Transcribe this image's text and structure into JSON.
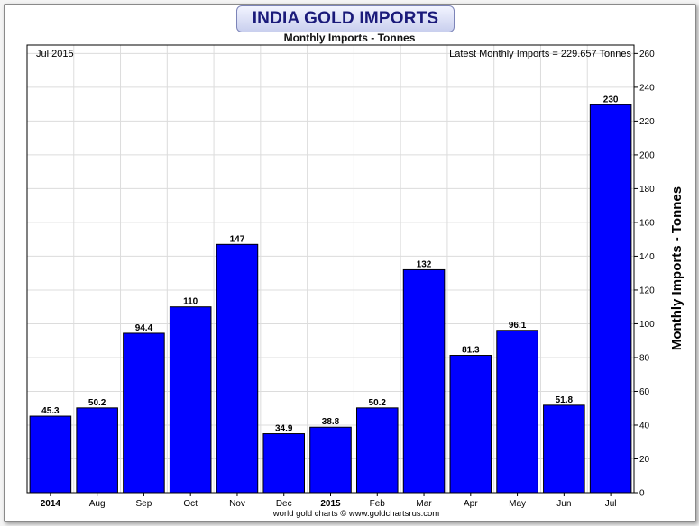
{
  "chart_data": {
    "type": "bar",
    "title": "INDIA GOLD IMPORTS",
    "subtitle": "Monthly Imports - Tonnes",
    "ylabel": "Monthly Imports - Tonnes",
    "xlabel": "",
    "date_label": "Jul 2015",
    "latest_label": "Latest Monthly Imports = 229.657 Tonnes",
    "credit": "world gold charts © www.goldchartsrus.com",
    "categories": [
      "2014",
      "Aug",
      "Sep",
      "Oct",
      "Nov",
      "Dec",
      "2015",
      "Feb",
      "Mar",
      "Apr",
      "May",
      "Jun",
      "Jul"
    ],
    "bold_categories": [
      "2014",
      "2015"
    ],
    "values": [
      45.3,
      50.2,
      94.4,
      110,
      147,
      34.9,
      38.8,
      50.2,
      132,
      81.3,
      96.1,
      51.8,
      229.657
    ],
    "value_labels": [
      "45.3",
      "50.2",
      "94.4",
      "110",
      "147",
      "34.9",
      "38.8",
      "50.2",
      "132",
      "81.3",
      "96.1",
      "51.8",
      "230"
    ],
    "ylim": [
      0,
      265
    ],
    "yticks": [
      0,
      20,
      40,
      60,
      80,
      100,
      120,
      140,
      160,
      180,
      200,
      220,
      240,
      260
    ],
    "y_axis_side": "right",
    "grid": true,
    "legend": "none",
    "colors": {
      "bar": "#0000ff",
      "bar_edge": "#000000",
      "grid": "#dcdcdc",
      "title_text": "#1a1a7a"
    }
  }
}
